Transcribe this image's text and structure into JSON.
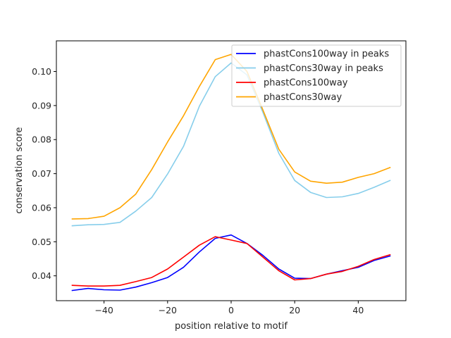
{
  "chart_data": {
    "type": "line",
    "title": "",
    "xlabel": "position relative to motif",
    "ylabel": "conservation score",
    "xlim": [
      -55,
      55
    ],
    "ylim": [
      0.0327,
      0.109
    ],
    "xticks": [
      -40,
      -20,
      0,
      20,
      40
    ],
    "xtick_labels": [
      "−40",
      "−20",
      "0",
      "20",
      "40"
    ],
    "yticks": [
      0.04,
      0.05,
      0.06,
      0.07,
      0.08,
      0.09,
      0.1
    ],
    "ytick_labels": [
      "0.04",
      "0.05",
      "0.06",
      "0.07",
      "0.08",
      "0.09",
      "0.10"
    ],
    "grid": false,
    "legend_position": "top-right",
    "x": [
      -50,
      -45,
      -40,
      -35,
      -30,
      -25,
      -20,
      -15,
      -10,
      -5,
      0,
      5,
      10,
      15,
      20,
      25,
      30,
      35,
      40,
      45,
      50
    ],
    "series": [
      {
        "name": "phastCons100way in peaks",
        "color": "#0000ff",
        "values": [
          0.0357,
          0.0363,
          0.0359,
          0.0358,
          0.0367,
          0.038,
          0.0395,
          0.0425,
          0.047,
          0.051,
          0.052,
          0.0495,
          0.046,
          0.042,
          0.0393,
          0.0392,
          0.0405,
          0.0415,
          0.0425,
          0.0445,
          0.0458
        ]
      },
      {
        "name": "phastCons30way in peaks",
        "color": "#87ceeb",
        "values": [
          0.0547,
          0.055,
          0.0551,
          0.0557,
          0.059,
          0.063,
          0.0699,
          0.078,
          0.0898,
          0.0985,
          0.1025,
          0.099,
          0.088,
          0.076,
          0.068,
          0.0645,
          0.063,
          0.0632,
          0.0642,
          0.066,
          0.068
        ]
      },
      {
        "name": "phastCons100way",
        "color": "#ff0000",
        "values": [
          0.0372,
          0.037,
          0.037,
          0.0372,
          0.0383,
          0.0395,
          0.042,
          0.0455,
          0.049,
          0.0515,
          0.0505,
          0.0495,
          0.0455,
          0.0415,
          0.0388,
          0.0392,
          0.0405,
          0.0413,
          0.0428,
          0.0448,
          0.0462
        ]
      },
      {
        "name": "phastCons30way",
        "color": "#ffa500",
        "values": [
          0.0567,
          0.0568,
          0.0575,
          0.06,
          0.064,
          0.0712,
          0.0793,
          0.087,
          0.0956,
          0.1035,
          0.105,
          0.1,
          0.0887,
          0.0772,
          0.0705,
          0.0678,
          0.0672,
          0.0675,
          0.0689,
          0.07,
          0.0718
        ]
      }
    ]
  }
}
